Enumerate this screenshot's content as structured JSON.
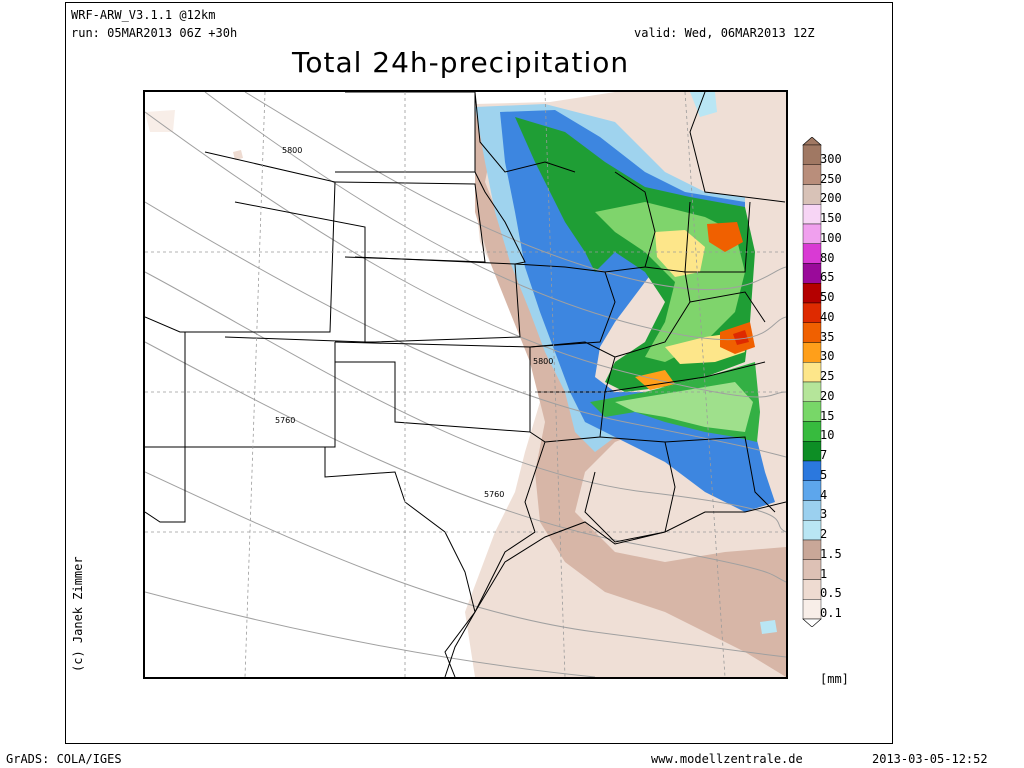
{
  "header": {
    "model": "WRF-ARW_V3.1.1 @12km",
    "run": "run: 05MAR2013 06Z +30h",
    "valid": "valid: Wed, 06MAR2013 12Z",
    "title": "Total 24h-precipitation"
  },
  "map": {
    "contour_labels": [
      "5800",
      "5760",
      "5800",
      "5760"
    ],
    "credit": "(c) Janek Zimmer",
    "unit": "[mm]"
  },
  "colorbar": {
    "labels": [
      "300",
      "250",
      "200",
      "150",
      "100",
      "80",
      "65",
      "50",
      "40",
      "35",
      "30",
      "25",
      "20",
      "15",
      "10",
      "7",
      "5",
      "4",
      "3",
      "2",
      "1.5",
      "1",
      "0.5",
      "0.1"
    ],
    "colors": [
      "#a07863",
      "#b98e7b",
      "#d8c2b7",
      "#f7d5f5",
      "#f0a0ee",
      "#d93ad4",
      "#9a0a9a",
      "#b40000",
      "#de2a00",
      "#f06000",
      "#ff9f1a",
      "#fde68a",
      "#b5e59a",
      "#78d768",
      "#37bb3e",
      "#0d8e25",
      "#2b78de",
      "#5da6ec",
      "#9bd0ef",
      "#b9e6f4",
      "#c9a798",
      "#ddc1b5",
      "#eedbd1",
      "#f8eee8"
    ]
  },
  "footer": {
    "left": "GrADS: COLA/IGES",
    "center": "www.modellzentrale.de",
    "right": "2013-03-05-12:52"
  }
}
